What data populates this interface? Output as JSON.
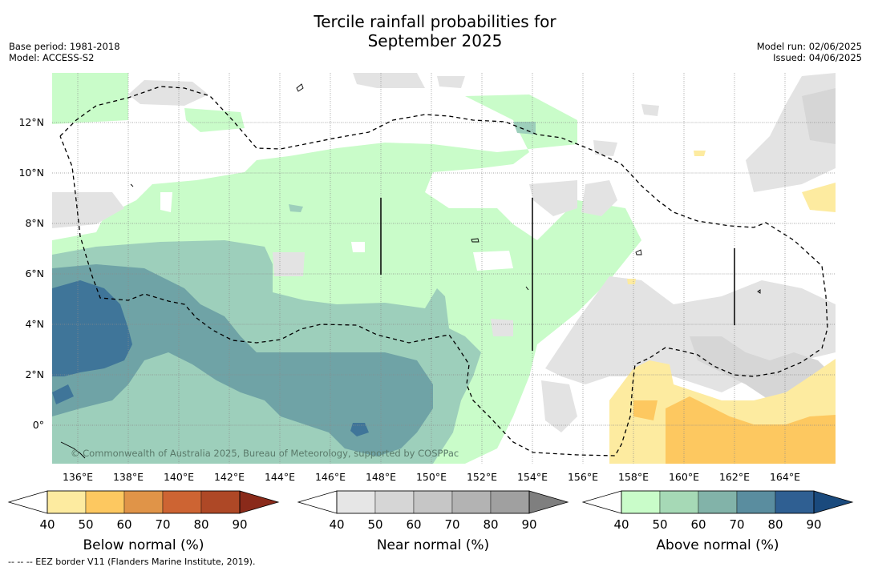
{
  "title_line1": "Tercile rainfall probabilities for",
  "title_line2": "September 2025",
  "base_period": "Base period: 1981-2018",
  "model": "Model: ACCESS-S2",
  "model_run": "Model run: 02/06/2025",
  "issued": "Issued: 04/06/2025",
  "copyright": "© Commonwealth of Australia 2025, Bureau of Meteorology, supported by COSPPac",
  "footnote": "--  --  -- EEZ border V11 (Flanders Marine Institute, 2019).",
  "map": {
    "lon_ticks": [
      "136°E",
      "138°E",
      "140°E",
      "142°E",
      "144°E",
      "146°E",
      "148°E",
      "150°E",
      "152°E",
      "154°E",
      "156°E",
      "158°E",
      "160°E",
      "162°E",
      "164°E"
    ],
    "lat_ticks": [
      "12°N",
      "10°N",
      "8°N",
      "6°N",
      "4°N",
      "2°N",
      "0°"
    ]
  },
  "colorbars": [
    {
      "label": "Below normal (%)",
      "ticks": [
        "40",
        "50",
        "60",
        "70",
        "80",
        "90"
      ],
      "colors": [
        "#ffffff",
        "#fdeba0",
        "#fdc860",
        "#e09448",
        "#cd6433",
        "#ae4826",
        "#8a2a1a"
      ]
    },
    {
      "label": "Near normal (%)",
      "ticks": [
        "40",
        "50",
        "60",
        "70",
        "80",
        "90"
      ],
      "colors": [
        "#ffffff",
        "#e6e6e6",
        "#d6d6d6",
        "#c6c6c6",
        "#b3b3b3",
        "#a0a0a0",
        "#7f7f7f"
      ]
    },
    {
      "label": "Above normal (%)",
      "ticks": [
        "40",
        "50",
        "60",
        "70",
        "80",
        "90"
      ],
      "colors": [
        "#ffffff",
        "#c9fcc9",
        "#a6d9b6",
        "#82b3a9",
        "#5a8d9f",
        "#2f5f92",
        "#1a4a7d"
      ]
    }
  ],
  "colors": {
    "above_50": "#c9fcc9",
    "above_60": "#9dcfbb",
    "above_70": "#6fa3a6",
    "above_80": "#3f7599",
    "below_50": "#fdeba0",
    "below_60": "#fdc860",
    "near_50": "#e3e3e3",
    "near_60": "#d6d6d6"
  }
}
